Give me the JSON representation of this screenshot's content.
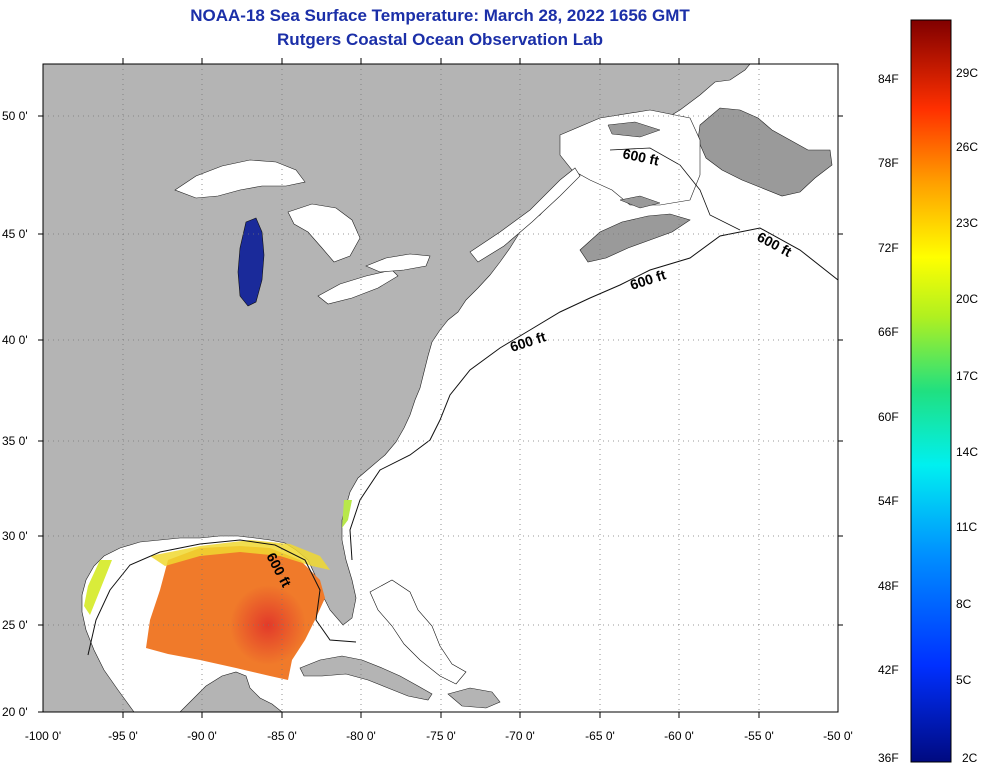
{
  "title": "NOAA-18 Sea Surface Temperature:  March 28, 2022 1656 GMT",
  "subtitle": "Rutgers Coastal Ocean Observation Lab",
  "lat_labels": [
    "50 0'",
    "45 0'",
    "40 0'",
    "35 0'",
    "30 0'",
    "25 0'",
    "20 0'"
  ],
  "lon_labels": [
    "-100 0'",
    "-95 0'",
    "-90 0'",
    "-85 0'",
    "-80 0'",
    "-75 0'",
    "-70 0'",
    "-65 0'",
    "-60 0'",
    "-55 0'",
    "-50 0'"
  ],
  "isobath_labels": [
    "600 ft",
    "600 ft",
    "600 ft",
    "600 ft",
    "600 ft"
  ],
  "colorbar": {
    "f_labels": [
      "84F",
      "78F",
      "72F",
      "66F",
      "60F",
      "54F",
      "48F",
      "42F",
      "36F"
    ],
    "c_labels": [
      "29C",
      "26C",
      "23C",
      "20C",
      "17C",
      "14C",
      "11C",
      "8C",
      "5C",
      "2C"
    ]
  },
  "colors": {
    "title": "#1b2fa8",
    "land": "#b4b4b4",
    "ocean": "#ffffff",
    "lake_michigan": "#1a2a9a",
    "sst_warm": "#f07a1e",
    "sst_hot": "#e8402a",
    "sst_cool": "#f0e020"
  }
}
